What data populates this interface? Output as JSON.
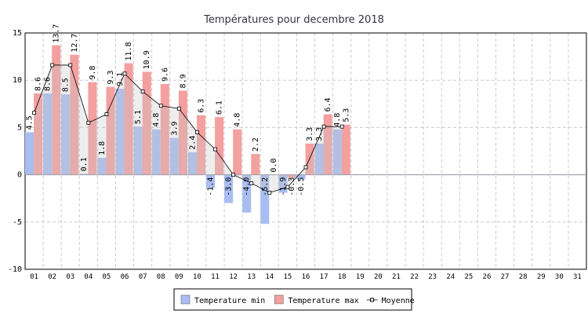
{
  "chart_data": {
    "type": "bar",
    "title": "Températures pour decembre 2018",
    "categories": [
      "01",
      "02",
      "03",
      "04",
      "05",
      "06",
      "07",
      "08",
      "09",
      "10",
      "11",
      "12",
      "13",
      "14",
      "15",
      "16",
      "17",
      "18",
      "19",
      "20",
      "21",
      "22",
      "23",
      "24",
      "25",
      "26",
      "27",
      "28",
      "29",
      "30",
      "31"
    ],
    "series": [
      {
        "name": "Temperature min",
        "color": "#a8bdf0",
        "values": [
          4.5,
          8.6,
          8.5,
          0.1,
          1.8,
          9.1,
          5.1,
          4.8,
          3.9,
          2.4,
          -1.4,
          -3.0,
          -4.0,
          -5.2,
          -1.9,
          -0.5,
          3.3,
          4.8,
          null,
          null,
          null,
          null,
          null,
          null,
          null,
          null,
          null,
          null,
          null,
          null,
          null
        ],
        "value_labels": [
          "4.5",
          "8.6",
          "8.5",
          "0.1",
          "1.8",
          "9.1",
          "5.1",
          "4.8",
          "3.9",
          "2.4",
          "-1.4",
          "-3.0",
          "-4.0",
          "-5.2",
          "-1.9",
          "-0.5",
          "3.3",
          "4.8",
          null,
          null,
          null,
          null,
          null,
          null,
          null,
          null,
          null,
          null,
          null,
          null,
          null
        ]
      },
      {
        "name": "Temperature max",
        "color": "#f4a0a0",
        "values": [
          8.6,
          13.7,
          12.7,
          9.8,
          9.3,
          11.8,
          10.9,
          9.6,
          8.9,
          6.3,
          6.1,
          4.8,
          2.2,
          0.0,
          -0.3,
          3.3,
          6.4,
          5.3,
          null,
          null,
          null,
          null,
          null,
          null,
          null,
          null,
          null,
          null,
          null,
          null,
          null
        ],
        "value_labels": [
          "8.6",
          "13.7",
          "12.7",
          "9.8",
          "9.3",
          "11.8",
          "10.9",
          "9.6",
          "8.9",
          "6.3",
          "6.1",
          "4.8",
          "2.2",
          "0.0",
          "-0.3",
          "3.3",
          "6.4",
          "5.3",
          null,
          null,
          null,
          null,
          null,
          null,
          null,
          null,
          null,
          null,
          null,
          null,
          null
        ]
      },
      {
        "name": "Moyenne",
        "type": "line",
        "color": "#000000",
        "values": [
          6.55,
          11.6,
          11.6,
          5.5,
          6.4,
          10.7,
          8.8,
          7.3,
          7.0,
          4.5,
          2.7,
          0.0,
          -0.9,
          -1.9,
          -1.3,
          0.8,
          5.1,
          5.1,
          null,
          null,
          null,
          null,
          null,
          null,
          null,
          null,
          null,
          null,
          null,
          null,
          null
        ]
      }
    ],
    "ylim": [
      -10,
      15
    ],
    "yticks": [
      -10,
      -5,
      0,
      5,
      10,
      15
    ],
    "grid": true,
    "legend": "bottom"
  }
}
